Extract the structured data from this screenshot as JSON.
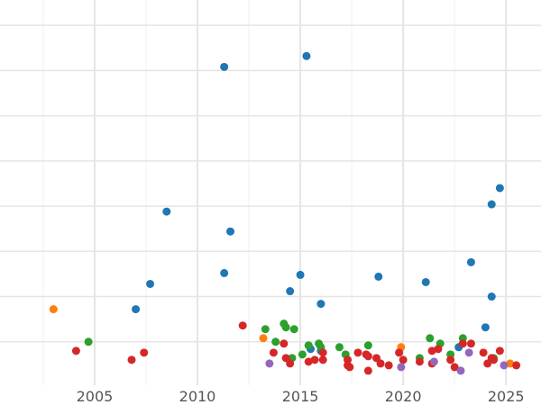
{
  "chart_data": {
    "type": "scatter",
    "title": "",
    "xlabel": "",
    "ylabel": "",
    "xlim": [
      2000.4,
      2026.7
    ],
    "ylim": [
      -2.4,
      18.9
    ],
    "x_ticks": [
      2005,
      2010,
      2015,
      2020,
      2025
    ],
    "x_tick_labels": [
      "2005",
      "2010",
      "2015",
      "2020",
      "2025"
    ],
    "y_gridlines": [
      0,
      2.5,
      5,
      7.5,
      10,
      12.5,
      15,
      17.5
    ],
    "y_tick_labels_visible": false,
    "grid": true,
    "legend": "none",
    "series": [
      {
        "color": "#1f77b4",
        "points": [
          [
            2007.0,
            1.8
          ],
          [
            2007.7,
            3.2
          ],
          [
            2008.5,
            7.2
          ],
          [
            2011.3,
            15.2
          ],
          [
            2011.3,
            3.8
          ],
          [
            2011.6,
            6.1
          ],
          [
            2014.5,
            2.8
          ],
          [
            2015.0,
            3.7
          ],
          [
            2015.3,
            15.8
          ],
          [
            2016.0,
            2.1
          ],
          [
            2018.8,
            3.6
          ],
          [
            2021.1,
            3.3
          ],
          [
            2023.3,
            4.4
          ],
          [
            2024.0,
            0.8
          ],
          [
            2024.3,
            7.6
          ],
          [
            2024.3,
            2.5
          ],
          [
            2024.7,
            8.5
          ],
          [
            2022.7,
            -0.3
          ],
          [
            2015.5,
            -0.4
          ],
          [
            2016.0,
            -0.5
          ]
        ]
      },
      {
        "color": "#ff7f0e",
        "points": [
          [
            2003.0,
            1.8
          ],
          [
            2013.2,
            0.2
          ],
          [
            2019.9,
            -0.3
          ],
          [
            2025.2,
            -1.2
          ]
        ]
      },
      {
        "color": "#2ca02c",
        "points": [
          [
            2004.7,
            0.0
          ],
          [
            2013.3,
            0.7
          ],
          [
            2013.8,
            0.0
          ],
          [
            2014.2,
            1.0
          ],
          [
            2014.3,
            0.8
          ],
          [
            2014.7,
            0.7
          ],
          [
            2014.6,
            -0.9
          ],
          [
            2015.1,
            -0.7
          ],
          [
            2015.4,
            -0.2
          ],
          [
            2015.9,
            -0.1
          ],
          [
            2016.0,
            -0.3
          ],
          [
            2016.9,
            -0.3
          ],
          [
            2017.2,
            -0.7
          ],
          [
            2018.3,
            -0.2
          ],
          [
            2020.8,
            -0.9
          ],
          [
            2021.3,
            0.2
          ],
          [
            2021.8,
            -0.1
          ],
          [
            2022.3,
            -0.7
          ],
          [
            2022.9,
            0.2
          ],
          [
            2024.4,
            -0.9
          ]
        ]
      },
      {
        "color": "#d62728",
        "points": [
          [
            2004.1,
            -0.5
          ],
          [
            2006.8,
            -1.0
          ],
          [
            2007.4,
            -0.6
          ],
          [
            2012.2,
            0.9
          ],
          [
            2013.7,
            -0.6
          ],
          [
            2014.2,
            -0.1
          ],
          [
            2014.3,
            -0.9
          ],
          [
            2014.5,
            -1.2
          ],
          [
            2015.4,
            -1.1
          ],
          [
            2015.7,
            -1.0
          ],
          [
            2016.1,
            -0.6
          ],
          [
            2016.1,
            -1.0
          ],
          [
            2017.3,
            -1.3
          ],
          [
            2017.4,
            -1.4
          ],
          [
            2017.3,
            -1.0
          ],
          [
            2017.8,
            -0.6
          ],
          [
            2018.2,
            -0.7
          ],
          [
            2018.3,
            -0.8
          ],
          [
            2018.3,
            -1.6
          ],
          [
            2018.7,
            -0.9
          ],
          [
            2018.9,
            -1.2
          ],
          [
            2019.3,
            -1.3
          ],
          [
            2019.8,
            -0.6
          ],
          [
            2020.0,
            -1.0
          ],
          [
            2020.8,
            -1.1
          ],
          [
            2021.4,
            -1.2
          ],
          [
            2021.4,
            -0.5
          ],
          [
            2021.7,
            -0.4
          ],
          [
            2022.3,
            -1.0
          ],
          [
            2022.5,
            -1.4
          ],
          [
            2022.9,
            -0.1
          ],
          [
            2023.3,
            -0.1
          ],
          [
            2023.9,
            -0.6
          ],
          [
            2024.1,
            -1.2
          ],
          [
            2024.3,
            -0.9
          ],
          [
            2024.4,
            -1.0
          ],
          [
            2024.7,
            -0.5
          ],
          [
            2025.5,
            -1.3
          ]
        ]
      },
      {
        "color": "#9467bd",
        "points": [
          [
            2013.5,
            -1.2
          ],
          [
            2019.9,
            -1.4
          ],
          [
            2021.5,
            -1.1
          ],
          [
            2022.8,
            -1.6
          ],
          [
            2023.2,
            -0.6
          ],
          [
            2024.9,
            -1.3
          ]
        ]
      }
    ]
  }
}
